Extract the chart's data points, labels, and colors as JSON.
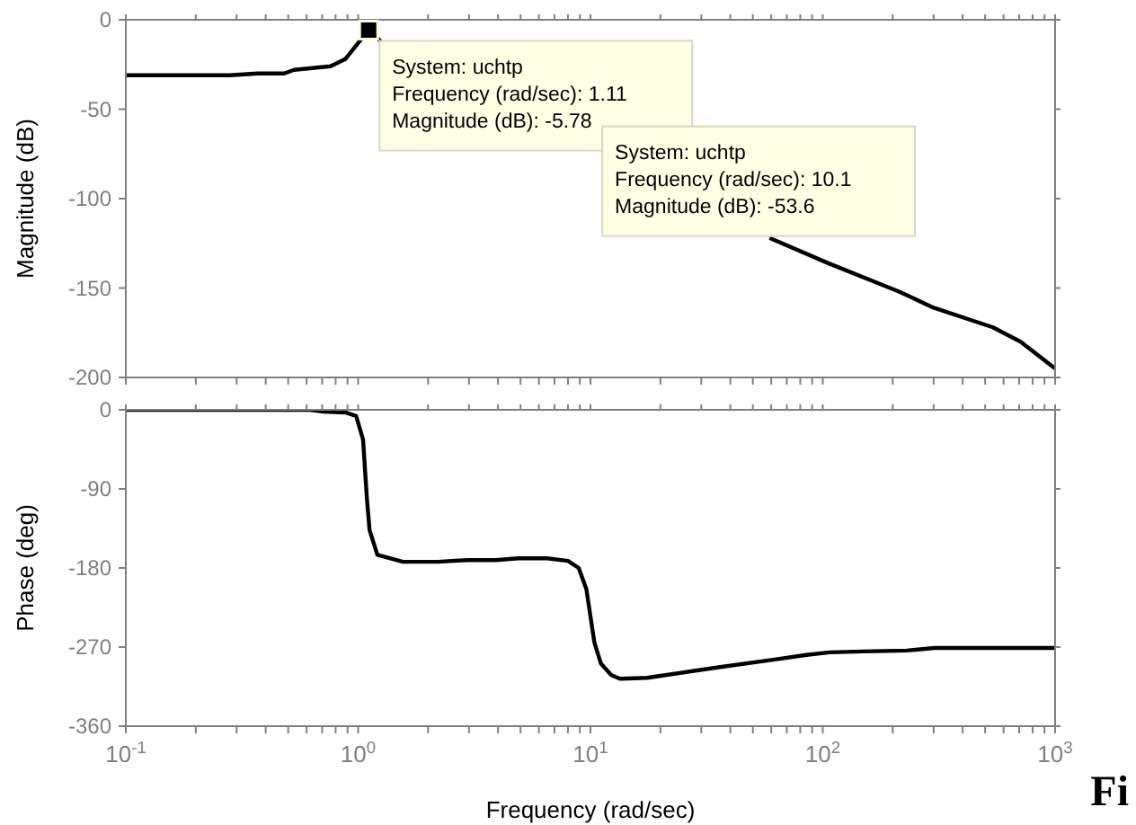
{
  "chart_data": [
    {
      "type": "line",
      "ylabel": "Magnitude (dB)",
      "xlim": [
        0.1,
        1000
      ],
      "ylim": [
        -200,
        0
      ],
      "log": "x",
      "marker": "none",
      "line_style": "solid",
      "tick_labels": "y",
      "xticks": [
        {
          "value": 0.1,
          "label": null
        },
        {
          "value": 0.2,
          "label": null
        },
        {
          "value": 0.3,
          "label": null
        },
        {
          "value": 0.4,
          "label": null
        },
        {
          "value": 0.5,
          "label": null
        },
        {
          "value": 0.6,
          "label": null
        },
        {
          "value": 0.7,
          "label": null
        },
        {
          "value": 0.8,
          "label": null
        },
        {
          "value": 0.9,
          "label": null
        },
        {
          "value": 1,
          "label": null
        },
        {
          "value": 2,
          "label": null
        },
        {
          "value": 3,
          "label": null
        },
        {
          "value": 4,
          "label": null
        },
        {
          "value": 5,
          "label": null
        },
        {
          "value": 6,
          "label": null
        },
        {
          "value": 7,
          "label": null
        },
        {
          "value": 8,
          "label": null
        },
        {
          "value": 9,
          "label": null
        },
        {
          "value": 10,
          "label": null
        },
        {
          "value": 20,
          "label": null
        },
        {
          "value": 30,
          "label": null
        },
        {
          "value": 40,
          "label": null
        },
        {
          "value": 50,
          "label": null
        },
        {
          "value": 60,
          "label": null
        },
        {
          "value": 70,
          "label": null
        },
        {
          "value": 80,
          "label": null
        },
        {
          "value": 90,
          "label": null
        },
        {
          "value": 100,
          "label": null
        },
        {
          "value": 200,
          "label": null
        },
        {
          "value": 300,
          "label": null
        },
        {
          "value": 400,
          "label": null
        },
        {
          "value": 500,
          "label": null
        },
        {
          "value": 600,
          "label": null
        },
        {
          "value": 700,
          "label": null
        },
        {
          "value": 800,
          "label": null
        },
        {
          "value": 900,
          "label": null
        },
        {
          "value": 1000,
          "label": null
        }
      ],
      "yticks": [
        -200,
        -150,
        -100,
        -50,
        0
      ],
      "series": [
        {
          "color": "#000000",
          "x": [
            0.1,
            0.28,
            0.37,
            0.48,
            0.53,
            0.76,
            0.88,
            1.0,
            1.11,
            1.25,
            5,
            59,
            105,
            213,
            300,
            540,
            710,
            1000
          ],
          "values": [
            -31,
            -31,
            -30,
            -30,
            -28,
            -26,
            -22,
            -13,
            -5.78,
            -12,
            null,
            -122,
            -136,
            -152,
            -161,
            -172,
            -180,
            -195
          ]
        }
      ],
      "annotations": [
        {
          "text": "System: uchtp\nFrequency (rad/sec): 1.11\nMagnitude (dB): -5.78",
          "x": 1.11,
          "y": -5.78
        },
        {
          "text": "System: uchtp\nFrequency (rad/sec): 10.1\nMagnitude (dB): -53.6",
          "x": 10.1,
          "y": -53.6
        }
      ]
    },
    {
      "type": "line",
      "ylabel": "Phase (deg)",
      "xlabel": "Frequency  (rad/sec)",
      "xlim": [
        0.1,
        1000
      ],
      "ylim": [
        -360,
        0
      ],
      "log": "x",
      "marker": "none",
      "line_style": "solid",
      "xticks": [
        {
          "value": 0.1,
          "label": "10$^{-1}$"
        },
        {
          "value": 0.2,
          "label": null
        },
        {
          "value": 0.3,
          "label": null
        },
        {
          "value": 0.4,
          "label": null
        },
        {
          "value": 0.5,
          "label": null
        },
        {
          "value": 0.6,
          "label": null
        },
        {
          "value": 0.7,
          "label": null
        },
        {
          "value": 0.8,
          "label": null
        },
        {
          "value": 0.9,
          "label": null
        },
        {
          "value": 1,
          "label": "10$^{0}$"
        },
        {
          "value": 2,
          "label": null
        },
        {
          "value": 3,
          "label": null
        },
        {
          "value": 4,
          "label": null
        },
        {
          "value": 5,
          "label": null
        },
        {
          "value": 6,
          "label": null
        },
        {
          "value": 7,
          "label": null
        },
        {
          "value": 8,
          "label": null
        },
        {
          "value": 9,
          "label": null
        },
        {
          "value": 10,
          "label": "10$^{1}$"
        },
        {
          "value": 20,
          "label": null
        },
        {
          "value": 30,
          "label": null
        },
        {
          "value": 40,
          "label": null
        },
        {
          "value": 50,
          "label": null
        },
        {
          "value": 60,
          "label": null
        },
        {
          "value": 70,
          "label": null
        },
        {
          "value": 80,
          "label": null
        },
        {
          "value": 90,
          "label": null
        },
        {
          "value": 100,
          "label": "10$^{2}$"
        },
        {
          "value": 200,
          "label": null
        },
        {
          "value": 300,
          "label": null
        },
        {
          "value": 400,
          "label": null
        },
        {
          "value": 500,
          "label": null
        },
        {
          "value": 600,
          "label": null
        },
        {
          "value": 700,
          "label": null
        },
        {
          "value": 800,
          "label": null
        },
        {
          "value": 900,
          "label": null
        },
        {
          "value": 1000,
          "label": "10$^{3}$"
        }
      ],
      "yticks": [
        -360,
        -270,
        -180,
        -90,
        0
      ],
      "series": [
        {
          "color": "#000000",
          "x": [
            0.1,
            0.62,
            0.71,
            0.88,
            0.98,
            1.05,
            1.09,
            1.12,
            1.21,
            1.56,
            2.2,
            2.95,
            3.9,
            4.9,
            6.5,
            8.0,
            8.9,
            9.6,
            10.4,
            11.1,
            12.3,
            13.4,
            17.5,
            35.6,
            63,
            85,
            107,
            148,
            230,
            303,
            1000
          ],
          "values": [
            0,
            0,
            -2,
            -3,
            -7,
            -34,
            -100,
            -137,
            -165,
            -173,
            -173,
            -171,
            -171,
            -169,
            -169,
            -172,
            -180,
            -204,
            -265,
            -289,
            -302,
            -306,
            -305,
            -293,
            -284,
            -279,
            -276,
            -275,
            -274,
            -271,
            -271
          ]
        }
      ],
      "annotations": [
        "Fi"
      ]
    }
  ]
}
